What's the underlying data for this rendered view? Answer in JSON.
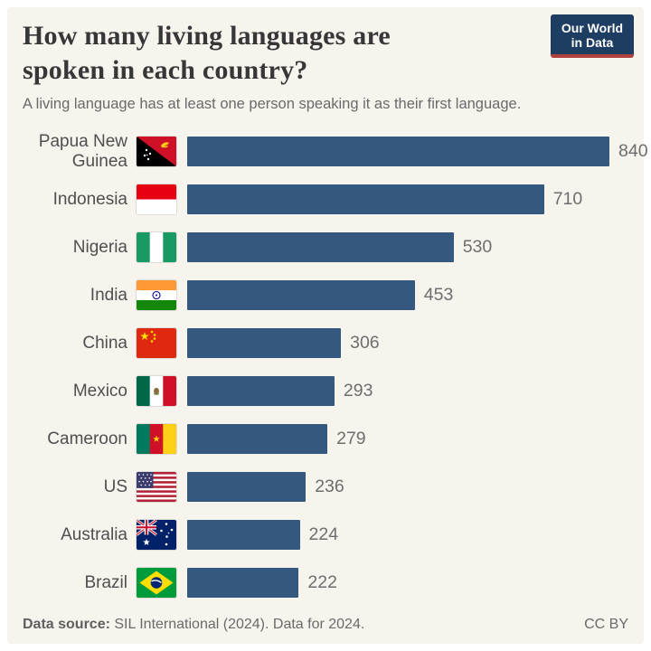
{
  "header": {
    "title": "How many living languages are spoken in each country?",
    "title_lines": [
      "How many living languages are",
      "spoken in each country?"
    ],
    "subtitle": "A living language has at least one person speaking it as their first language.",
    "logo": {
      "line1": "Our World",
      "line2": "in Data"
    }
  },
  "chart_data": {
    "type": "bar",
    "orientation": "horizontal",
    "title": "How many living languages are spoken in each country?",
    "subtitle": "A living language has at least one person speaking it as their first language.",
    "xlim": [
      0,
      840
    ],
    "grid": false,
    "legend": false,
    "value_labels": "end-of-bar",
    "categories": [
      "Papua New Guinea",
      "Indonesia",
      "Nigeria",
      "India",
      "China",
      "Mexico",
      "Cameroon",
      "US",
      "Australia",
      "Brazil"
    ],
    "values": [
      840,
      710,
      530,
      453,
      306,
      293,
      279,
      236,
      224,
      222
    ],
    "rows": [
      {
        "country": "Papua New Guinea",
        "value": 840,
        "flag": "papua-new-guinea"
      },
      {
        "country": "Indonesia",
        "value": 710,
        "flag": "indonesia"
      },
      {
        "country": "Nigeria",
        "value": 530,
        "flag": "nigeria"
      },
      {
        "country": "India",
        "value": 453,
        "flag": "india"
      },
      {
        "country": "China",
        "value": 306,
        "flag": "china"
      },
      {
        "country": "Mexico",
        "value": 293,
        "flag": "mexico"
      },
      {
        "country": "Cameroon",
        "value": 279,
        "flag": "cameroon"
      },
      {
        "country": "US",
        "value": 236,
        "flag": "us"
      },
      {
        "country": "Australia",
        "value": 224,
        "flag": "australia"
      },
      {
        "country": "Brazil",
        "value": 222,
        "flag": "brazil"
      }
    ]
  },
  "footer": {
    "source_label": "Data source:",
    "source_text": " SIL International (2024). Data for 2024.",
    "license": "CC BY"
  },
  "colors": {
    "bar": "#35597e",
    "canvas_background": "#f7f4ee",
    "title_text": "#373737",
    "subtitle_text": "#6a6a6a",
    "label_text": "#4f4f4f",
    "value_text": "#6e6e6e",
    "logo_background": "#1d3d63",
    "logo_underline": "#b0413e"
  }
}
